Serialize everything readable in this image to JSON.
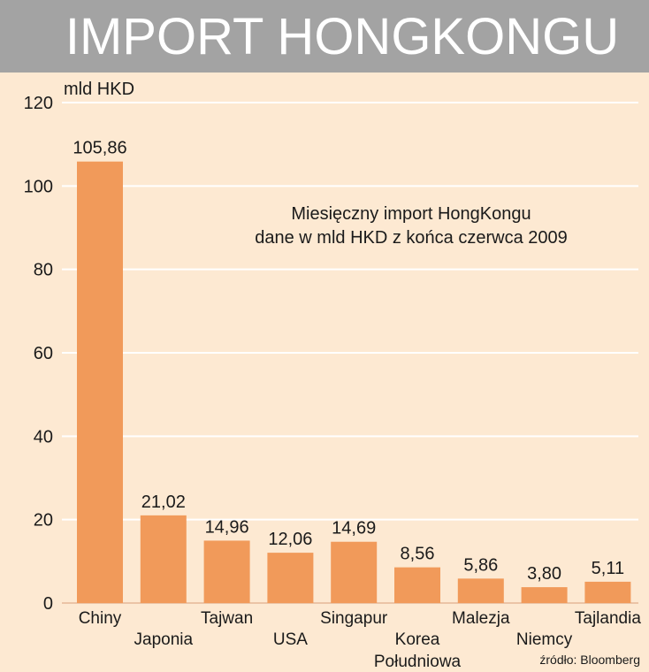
{
  "header": {
    "title": "IMPORT HONGKONGU"
  },
  "colors": {
    "bar": "#f19a5a",
    "background": "#fde9d2",
    "header": "#a3a3a3",
    "grid": "#ffffff"
  },
  "chart_data": {
    "type": "bar",
    "title": "IMPORT HONGKONGU",
    "subtitle": [
      "Miesięczny import HongKongu",
      "dane w mld HKD z końca czerwca 2009"
    ],
    "ylabel": "mld HKD",
    "xlabel": "",
    "ylim": [
      0,
      120
    ],
    "yticks": [
      0,
      20,
      40,
      60,
      80,
      100,
      120
    ],
    "grid": true,
    "categories": [
      "Chiny",
      "Japonia",
      "Tajwan",
      "USA",
      "Singapur",
      "Korea Południowa",
      "Malezja",
      "Niemcy",
      "Tajlandia"
    ],
    "category_lines": [
      [
        "Chiny"
      ],
      [
        "Japonia"
      ],
      [
        "Tajwan"
      ],
      [
        "USA"
      ],
      [
        "Singapur"
      ],
      [
        "Korea",
        "Południowa"
      ],
      [
        "Malezja"
      ],
      [
        "Niemcy"
      ],
      [
        "Tajlandia"
      ]
    ],
    "values": [
      105.86,
      21.02,
      14.96,
      12.06,
      14.69,
      8.56,
      5.86,
      3.8,
      5.11
    ],
    "value_labels": [
      "105,86",
      "21,02",
      "14,96",
      "12,06",
      "14,69",
      "8,56",
      "5,86",
      "3,80",
      "5,11"
    ],
    "source": "źródło: Bloomberg"
  }
}
